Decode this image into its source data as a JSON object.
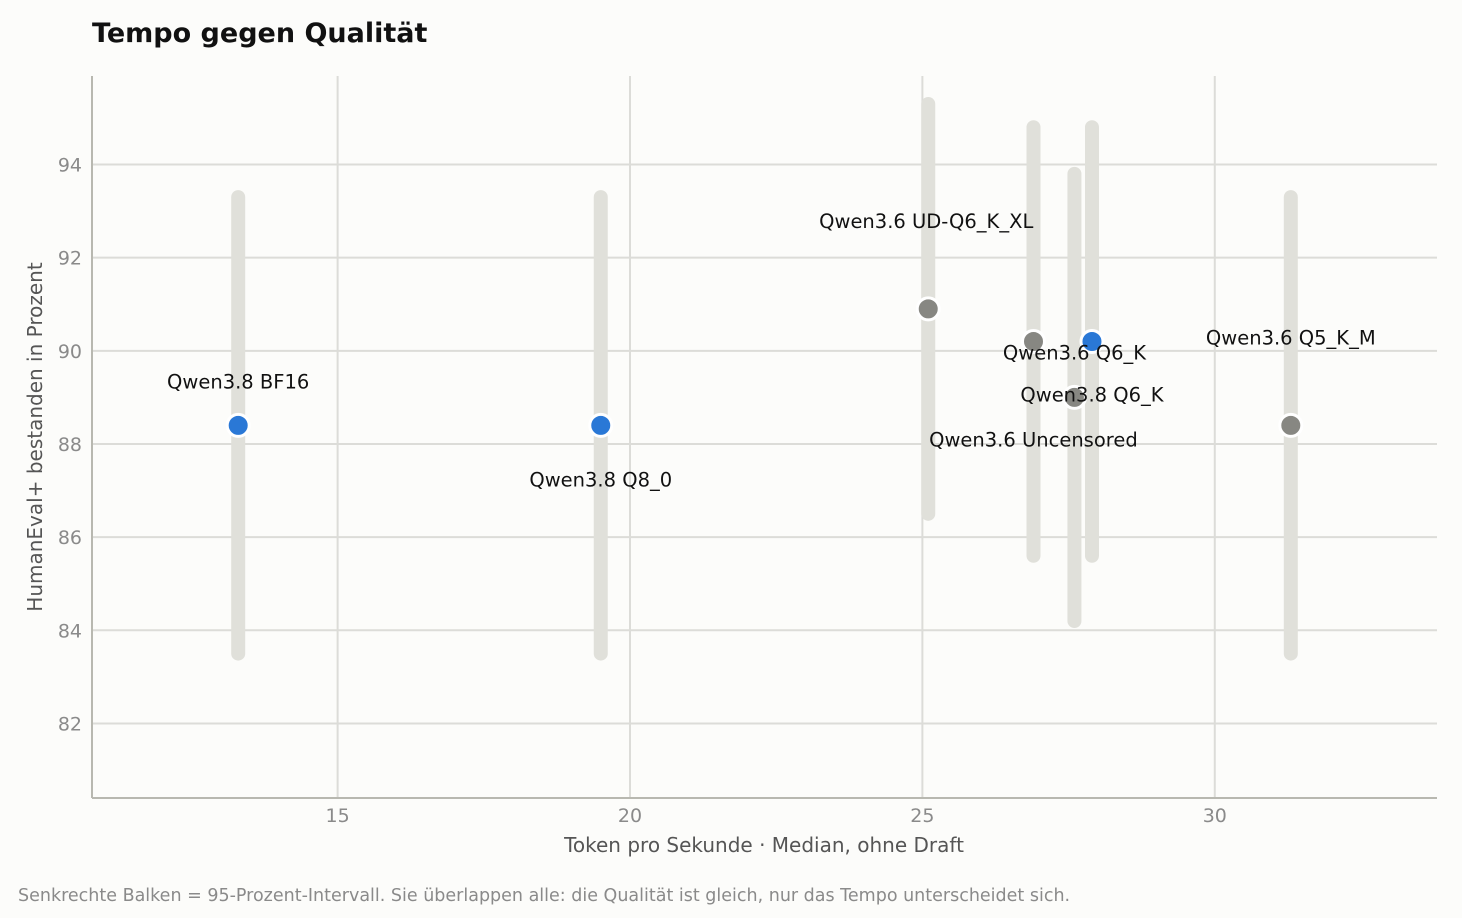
{
  "chart_data": {
    "type": "scatter",
    "title": "Tempo gegen Qualität",
    "xlabel": "Token pro Sekunde  ·  Median, ohne Draft",
    "ylabel": "HumanEval+ bestanden in Prozent",
    "footnote": "Senkrechte Balken = 95-Prozent-Intervall. Sie überlappen alle: die Qualität ist gleich, nur das Tempo unterscheidet sich.",
    "xlim": [
      10.8,
      33.8
    ],
    "ylim": [
      80.4,
      95.9
    ],
    "xticks": [
      15,
      20,
      25,
      30
    ],
    "yticks": [
      82,
      84,
      86,
      88,
      90,
      92,
      94
    ],
    "grid": true,
    "colors": {
      "highlight": "#2a78d6",
      "other": "#878782",
      "interval": "#e0e0da",
      "grid": "#dcdcd8",
      "axis": "#b8b8b0"
    },
    "points": [
      {
        "label": "Qwen3.8  BF16",
        "x": 13.3,
        "y": 88.4,
        "ci": [
          83.5,
          93.3
        ],
        "group": "highlight"
      },
      {
        "label": "Qwen3.8  Q8_0",
        "x": 19.5,
        "y": 88.4,
        "ci": [
          83.5,
          93.3
        ],
        "group": "highlight"
      },
      {
        "label": "Qwen3.6  UD-Q6_K_XL",
        "x": 25.1,
        "y": 90.9,
        "ci": [
          86.5,
          95.3
        ],
        "group": "other"
      },
      {
        "label": "Qwen3.6  Q6_K",
        "x": 26.9,
        "y": 90.2,
        "ci": [
          85.6,
          94.8
        ],
        "group": "other"
      },
      {
        "label": "Qwen3.6  Uncensored",
        "x": 27.6,
        "y": 89.0,
        "ci": [
          84.2,
          93.8
        ],
        "group": "other"
      },
      {
        "label": "Qwen3.8  Q6_K",
        "x": 27.9,
        "y": 90.2,
        "ci": [
          85.6,
          94.8
        ],
        "group": "highlight"
      },
      {
        "label": "Qwen3.6  Q5_K_M",
        "x": 31.3,
        "y": 88.4,
        "ci": [
          83.5,
          93.3
        ],
        "group": "other"
      }
    ]
  }
}
